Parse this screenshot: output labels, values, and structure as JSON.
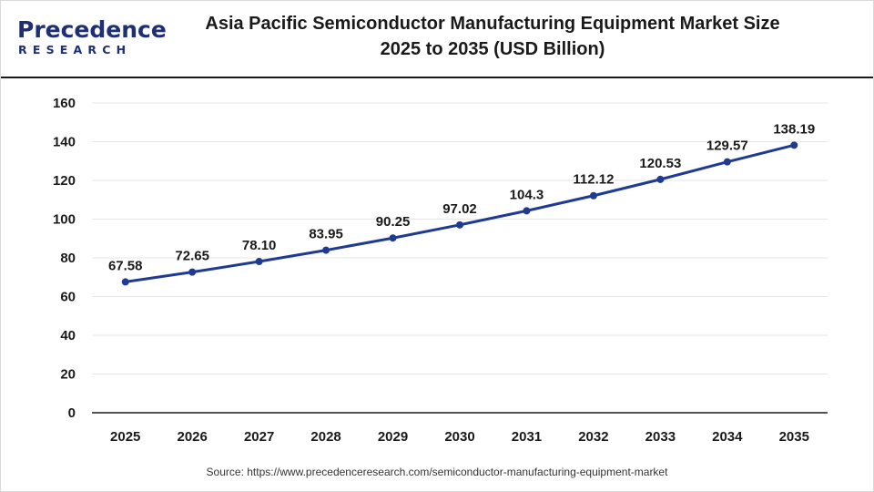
{
  "header": {
    "logo_main": "Precedence",
    "logo_sub": "RESEARCH",
    "title_line1": "Asia Pacific Semiconductor Manufacturing Equipment Market Size",
    "title_line2": "2025 to 2035 (USD Billion)"
  },
  "source": "Source: https://www.precedenceresearch.com/semiconductor-manufacturing-equipment-market",
  "colors": {
    "line": "#1f3a93",
    "marker": "#1f3a93",
    "grid": "#e6e6e6",
    "axis": "#1a1a1a",
    "logo": "#1e2f73"
  },
  "chart_data": {
    "type": "line",
    "categories": [
      "2025",
      "2026",
      "2027",
      "2028",
      "2029",
      "2030",
      "2031",
      "2032",
      "2033",
      "2034",
      "2035"
    ],
    "series": [
      {
        "values": [
          67.58,
          72.65,
          78.1,
          83.95,
          90.25,
          97.02,
          104.3,
          112.12,
          120.53,
          129.57,
          138.19
        ],
        "labels": [
          "67.58",
          "72.65",
          "78.10",
          "83.95",
          "90.25",
          "97.02",
          "104.3",
          "112.12",
          "120.53",
          "129.57",
          "138.19"
        ]
      }
    ],
    "title": "Asia Pacific Semiconductor Manufacturing Equipment Market Size 2025 to 2035 (USD Billion)",
    "xlabel": "",
    "ylabel": "",
    "ylim": [
      0,
      160
    ],
    "yticks": [
      0,
      20,
      40,
      60,
      80,
      100,
      120,
      140,
      160
    ],
    "grid": true,
    "legend": "none"
  }
}
